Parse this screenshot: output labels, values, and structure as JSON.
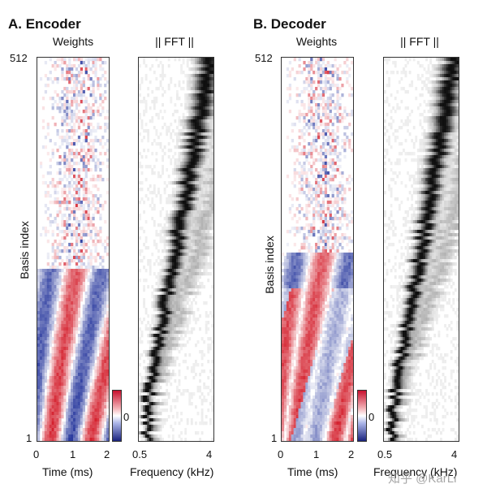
{
  "encoder": {
    "title": "A. Encoder",
    "weights_label": "Weights",
    "fft_label": "|| FFT ||",
    "y_axis_label": "Basis index",
    "y_tick_top": "512",
    "y_tick_bottom": "1",
    "time_ticks": [
      "0",
      "1",
      "2"
    ],
    "time_label": "Time (ms)",
    "freq_ticks": [
      "0.5",
      "4"
    ],
    "freq_label": "Frequency (kHz)",
    "colorbar_label": "0"
  },
  "decoder": {
    "title": "B. Decoder",
    "weights_label": "Weights",
    "fft_label": "|| FFT ||",
    "y_axis_label": "Basis index",
    "y_tick_top": "512",
    "y_tick_bottom": "1",
    "time_ticks": [
      "0",
      "1",
      "2"
    ],
    "time_label": "Time (ms)",
    "freq_ticks": [
      "0.5",
      "4"
    ],
    "freq_label": "Frequency (kHz)",
    "colorbar_label": "0"
  },
  "watermark": "知乎 @KarLi",
  "colors": {
    "positive": "#d4212e",
    "negative": "#2a3a9e",
    "fft_dark": "#111111"
  }
}
